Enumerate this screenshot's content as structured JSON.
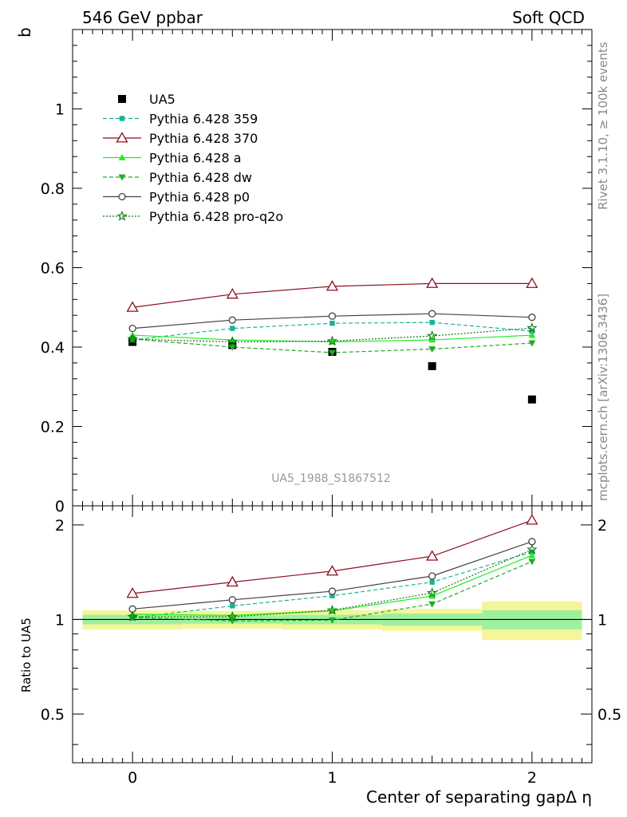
{
  "header": {
    "left_title": "546 GeV ppbar",
    "right_title": "Soft QCD"
  },
  "side_text": {
    "rivet": "Rivet 3.1.10, ≥ 100k events",
    "url": "mcplots.cern.ch [arXiv:1306.3436]"
  },
  "analysis_id": "UA5_1988_S1867512",
  "chart_data": [
    {
      "type": "line",
      "panel": "main",
      "ylabel": "b",
      "xlabel": "",
      "xlim": [
        -0.3,
        2.3
      ],
      "ylim": [
        0,
        1.2
      ],
      "x": [
        0,
        0.5,
        1.0,
        1.5,
        2.0
      ],
      "xticks": [
        0,
        1,
        2
      ],
      "yticks": [
        0,
        0.2,
        0.4,
        0.6,
        0.8,
        1
      ],
      "ytick_labels": [
        "0",
        "0.2",
        "0.4",
        "0.6",
        "0.8",
        "1"
      ],
      "legend_position": "top-left",
      "series": [
        {
          "name": "UA5",
          "values": [
            0.413,
            0.405,
            0.388,
            0.352,
            0.268
          ],
          "color": "#000000",
          "marker": "square-filled",
          "dash": "none"
        },
        {
          "name": "Pythia 6.428 359",
          "values": [
            0.418,
            0.447,
            0.46,
            0.462,
            0.44
          ],
          "color": "#1ab394",
          "marker": "square-small",
          "dash": "dashed"
        },
        {
          "name": "Pythia 6.428 370",
          "values": [
            0.5,
            0.533,
            0.553,
            0.56,
            0.56
          ],
          "color": "#8b1020",
          "marker": "triangle-open",
          "dash": "solid"
        },
        {
          "name": "Pythia 6.428 a",
          "values": [
            0.43,
            0.418,
            0.413,
            0.418,
            0.43
          ],
          "color": "#22ee22",
          "marker": "triangle-filled",
          "dash": "solid"
        },
        {
          "name": "Pythia 6.428 dw",
          "values": [
            0.42,
            0.4,
            0.386,
            0.395,
            0.41
          ],
          "color": "#22aa22",
          "marker": "triangle-down-filled",
          "dash": "dashed"
        },
        {
          "name": "Pythia 6.428 p0",
          "values": [
            0.447,
            0.468,
            0.478,
            0.484,
            0.475
          ],
          "color": "#444444",
          "marker": "circle-open",
          "dash": "solid"
        },
        {
          "name": "Pythia 6.428 pro-q2o",
          "values": [
            0.42,
            0.413,
            0.415,
            0.428,
            0.448
          ],
          "color": "#117711",
          "marker": "star",
          "dash": "dotted"
        }
      ]
    },
    {
      "type": "line",
      "panel": "ratio",
      "ylabel": "Ratio to UA5",
      "xlabel": "Center of separating gapΔ η",
      "xlim": [
        -0.3,
        2.3
      ],
      "ylim": [
        0.35,
        2.3
      ],
      "x": [
        0,
        0.5,
        1.0,
        1.5,
        2.0
      ],
      "xticks": [
        0,
        1,
        2
      ],
      "xtick_labels": [
        "0",
        "1",
        "2"
      ],
      "yticks": [
        0.5,
        1,
        2
      ],
      "ytick_labels": [
        "0.5",
        "1",
        "2"
      ],
      "reference_line": 1,
      "band_edges": [
        -0.25,
        0.25,
        0.75,
        1.25,
        1.75,
        2.25
      ],
      "uncertainty_bands": {
        "inner": [
          0.035,
          0.03,
          0.035,
          0.045,
          0.07
        ],
        "outer": [
          0.07,
          0.065,
          0.07,
          0.08,
          0.14
        ],
        "inner_color": "#9ef09e",
        "outer_color": "#f5f59a"
      },
      "series": [
        {
          "name": "Pythia 6.428 359",
          "values": [
            1.012,
            1.105,
            1.19,
            1.315,
            1.64
          ],
          "color": "#1ab394",
          "marker": "square-small",
          "dash": "dashed"
        },
        {
          "name": "Pythia 6.428 370",
          "values": [
            1.21,
            1.315,
            1.425,
            1.59,
            2.07
          ],
          "color": "#8b1020",
          "marker": "triangle-open",
          "dash": "solid"
        },
        {
          "name": "Pythia 6.428 a",
          "values": [
            1.04,
            1.03,
            1.065,
            1.188,
            1.6
          ],
          "color": "#22ee22",
          "marker": "triangle-filled",
          "dash": "solid"
        },
        {
          "name": "Pythia 6.428 dw",
          "values": [
            1.015,
            0.99,
            0.995,
            1.12,
            1.53
          ],
          "color": "#22aa22",
          "marker": "triangle-down-filled",
          "dash": "dashed"
        },
        {
          "name": "Pythia 6.428 p0",
          "values": [
            1.08,
            1.155,
            1.23,
            1.375,
            1.77
          ],
          "color": "#444444",
          "marker": "circle-open",
          "dash": "solid"
        },
        {
          "name": "Pythia 6.428 pro-q2o",
          "values": [
            1.02,
            1.02,
            1.07,
            1.215,
            1.67
          ],
          "color": "#117711",
          "marker": "star",
          "dash": "dotted"
        }
      ]
    }
  ]
}
